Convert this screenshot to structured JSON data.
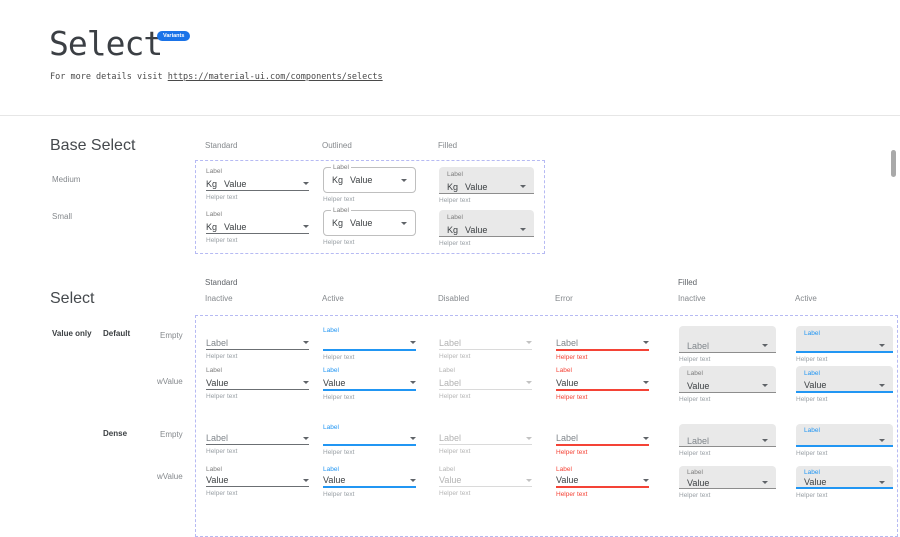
{
  "colors": {
    "accent": "#2196f3",
    "error": "#f44336",
    "badge_bg": "#1a73e8",
    "dashed_border": "#b6baf3",
    "filled_bg": "#e9e9e9"
  },
  "icons": {
    "dropdown": "caret-down-icon"
  },
  "header": {
    "title": "Select",
    "badge": "Variants",
    "subtitle_prefix": "For more details visit ",
    "subtitle_link": "https://material-ui.com/components/selects"
  },
  "base_select": {
    "heading": "Base Select",
    "column_headers": [
      "Standard",
      "Outlined",
      "Filled"
    ],
    "row_labels": [
      "Medium",
      "Small"
    ],
    "cell": {
      "label": "Label",
      "adornment": "Kg",
      "value": "Value",
      "helper": "Helper text"
    }
  },
  "select_grid": {
    "heading": "Select",
    "group_headers": [
      "Standard",
      "Filled"
    ],
    "column_headers": [
      "Inactive",
      "Active",
      "Disabled",
      "Error",
      "Inactive",
      "Active"
    ],
    "side": {
      "group": "Value only",
      "default": "Default",
      "dense": "Dense",
      "empty": "Empty",
      "wvalue": "wValue"
    },
    "helper": "Helper text",
    "columns": [
      {
        "variant": "standard",
        "state": "inactive"
      },
      {
        "variant": "standard",
        "state": "active"
      },
      {
        "variant": "standard",
        "state": "disabled"
      },
      {
        "variant": "standard",
        "state": "error"
      },
      {
        "variant": "filled",
        "state": "inactive"
      },
      {
        "variant": "filled",
        "state": "active"
      }
    ],
    "rows": [
      {
        "density": "default",
        "kind": "empty"
      },
      {
        "density": "default",
        "kind": "wvalue"
      },
      {
        "density": "dense",
        "kind": "empty"
      },
      {
        "density": "dense",
        "kind": "wvalue"
      }
    ],
    "cells": [
      [
        {
          "caption": null,
          "value": "Label",
          "muted": true
        },
        {
          "caption": "Label",
          "value": "",
          "muted": false
        },
        {
          "caption": null,
          "value": "Label",
          "muted": true
        },
        {
          "caption": null,
          "value": "Label",
          "muted": true
        },
        {
          "caption": null,
          "value": "Label",
          "muted": true
        },
        {
          "caption": "Label",
          "value": "",
          "muted": false
        }
      ],
      [
        {
          "caption": "Label",
          "value": "Value",
          "muted": false
        },
        {
          "caption": "Label",
          "value": "Value",
          "muted": false
        },
        {
          "caption": "Label",
          "value": "Label",
          "muted": true
        },
        {
          "caption": "Label",
          "value": "Value",
          "muted": false
        },
        {
          "caption": "Label",
          "value": "Value",
          "muted": false
        },
        {
          "caption": "Label",
          "value": "Value",
          "muted": false
        }
      ],
      [
        {
          "caption": null,
          "value": "Label",
          "muted": true
        },
        {
          "caption": "Label",
          "value": "",
          "muted": false
        },
        {
          "caption": null,
          "value": "Label",
          "muted": true
        },
        {
          "caption": null,
          "value": "Label",
          "muted": true
        },
        {
          "caption": null,
          "value": "Label",
          "muted": true
        },
        {
          "caption": "Label",
          "value": "",
          "muted": false
        }
      ],
      [
        {
          "caption": "Label",
          "value": "Value",
          "muted": false
        },
        {
          "caption": "Label",
          "value": "Value",
          "muted": false
        },
        {
          "caption": "Label",
          "value": "Value",
          "muted": true
        },
        {
          "caption": "Label",
          "value": "Value",
          "muted": false
        },
        {
          "caption": "Label",
          "value": "Value",
          "muted": false
        },
        {
          "caption": "Label",
          "value": "Value",
          "muted": false
        }
      ]
    ]
  }
}
